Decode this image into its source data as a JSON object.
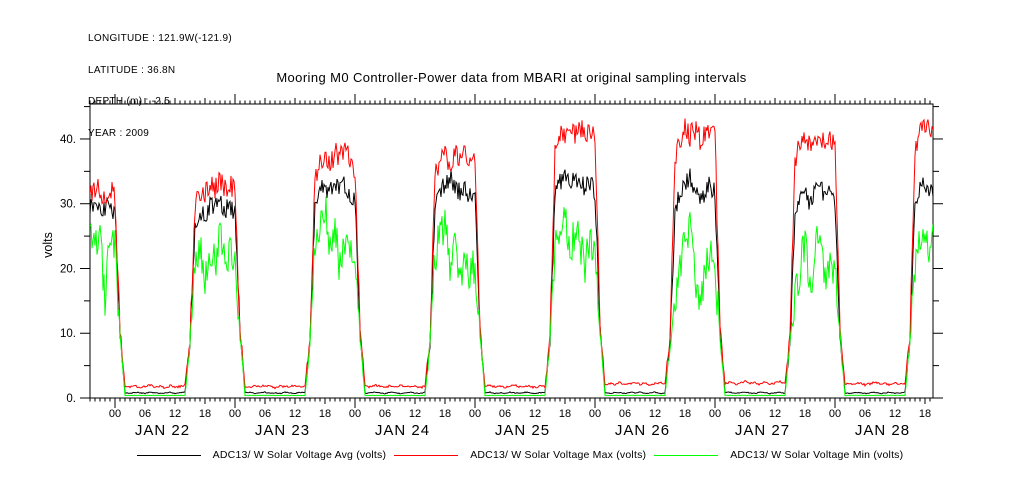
{
  "header": {
    "longitude": "LONGITUDE : 121.9W(-121.9)",
    "latitude": "LATITUDE : 36.8N",
    "depth": "DEPTH (m) : -2.5",
    "year": "YEAR : 2009"
  },
  "title": "Mooring M0 Controller-Power data from MBARI at original sampling intervals",
  "chart_data": {
    "type": "line",
    "title": "Mooring M0 Controller-Power data from MBARI at original sampling intervals",
    "ylabel": "volts",
    "ylim": [
      0,
      45.4
    ],
    "yticks_major": [
      0,
      10,
      20,
      30,
      40
    ],
    "ytick_labels": [
      "0.",
      "10.",
      "20.",
      "30.",
      "40."
    ],
    "yticks_minor": [
      5,
      15,
      25,
      35,
      45
    ],
    "grid": false,
    "legend_position": "bottom",
    "x_axis": {
      "unit": "hour of day",
      "start_hour": -5,
      "step_hours": 1,
      "count": 170,
      "xlim": [
        -5,
        163.6
      ],
      "hour_label_cycle": [
        "00",
        "06",
        "12",
        "18"
      ],
      "hour_label_step": 6,
      "hour_label_first": 0,
      "hour_label_last": 162,
      "day_labels": [
        "JAN 22",
        "JAN 23",
        "JAN 24",
        "JAN 25",
        "JAN 26",
        "JAN 27",
        "JAN 28"
      ],
      "day_boundary_hours": [
        0,
        24,
        48,
        72,
        96,
        120,
        144
      ]
    },
    "series": [
      {
        "key": "avg",
        "name": "ADC13/ W Solar Voltage Avg (volts)",
        "color": "#000000",
        "values": [
          29.5,
          30,
          29.5,
          29,
          30,
          28.5,
          10,
          0.8,
          0.7,
          0.9,
          0.8,
          0.7,
          0.9,
          0.8,
          0.7,
          0.8,
          0.9,
          0.7,
          0.8,
          0.9,
          8.5,
          27,
          28.5,
          28,
          29.5,
          30,
          30.5,
          29,
          29.5,
          28.5,
          10.5,
          0.8,
          0.9,
          0.7,
          0.8,
          0.9,
          0.7,
          0.8,
          0.7,
          0.9,
          0.8,
          0.7,
          0.9,
          0.8,
          9,
          30,
          32,
          33,
          31.5,
          33.5,
          32,
          33,
          31,
          30.5,
          10,
          0.7,
          0.8,
          0.9,
          0.8,
          0.7,
          0.9,
          0.8,
          0.7,
          0.8,
          0.9,
          0.8,
          0.7,
          0.9,
          8.5,
          30,
          32,
          33,
          34,
          33,
          31.5,
          32.5,
          31,
          31.5,
          10.5,
          0.8,
          0.9,
          0.7,
          0.8,
          0.7,
          0.9,
          0.8,
          0.7,
          0.9,
          0.8,
          0.7,
          0.8,
          0.9,
          9,
          31,
          33.5,
          34.5,
          33,
          34,
          33.5,
          32.5,
          33.5,
          32,
          10.5,
          0.8,
          0.7,
          0.9,
          0.8,
          0.7,
          0.9,
          0.8,
          0.9,
          0.7,
          0.8,
          0.9,
          0.7,
          0.8,
          8.5,
          29,
          31.5,
          33,
          34,
          32.5,
          30.5,
          31.5,
          33,
          31.5,
          10,
          0.8,
          0.9,
          0.7,
          0.8,
          0.9,
          0.8,
          0.7,
          0.9,
          0.8,
          0.7,
          0.8,
          0.9,
          0.7,
          9,
          28.5,
          31,
          32.5,
          30,
          32,
          33,
          30.5,
          31.5,
          30,
          10,
          0.8,
          0.7,
          0.9,
          0.8,
          0.7,
          0.8,
          0.9,
          0.7,
          0.8,
          0.9,
          0.7,
          0.8,
          0.9,
          9,
          30,
          32,
          33,
          31.5,
          32.5
        ]
      },
      {
        "key": "max",
        "name": "ADC13/ W Solar Voltage Max (volts)",
        "color": "#ff0000",
        "values": [
          31.5,
          32.5,
          32,
          31,
          32.5,
          31,
          10.5,
          1.9,
          1.7,
          1.9,
          1.6,
          1.8,
          2,
          1.7,
          1.8,
          1.6,
          1.9,
          1.7,
          1.8,
          2,
          9,
          30,
          32,
          31.5,
          33,
          32.5,
          33.5,
          32.5,
          33,
          32,
          11,
          1.8,
          1.6,
          1.9,
          1.7,
          2,
          1.8,
          1.6,
          1.9,
          1.7,
          1.8,
          2,
          1.7,
          1.9,
          9.5,
          34,
          36.5,
          37.5,
          36,
          38,
          37,
          38.5,
          36.5,
          35.5,
          11,
          1.9,
          1.7,
          2,
          1.8,
          1.6,
          1.9,
          1.7,
          2,
          1.8,
          1.7,
          1.9,
          1.6,
          1.8,
          9,
          34.5,
          36.5,
          37.5,
          36,
          38.5,
          37,
          38,
          36.5,
          37.5,
          11,
          1.8,
          2,
          1.7,
          1.9,
          1.6,
          1.8,
          2,
          1.7,
          1.9,
          1.8,
          1.6,
          1.9,
          1.7,
          9.5,
          38,
          41,
          40,
          41.5,
          40.5,
          42,
          40.5,
          41.5,
          40,
          11.5,
          2,
          2.3,
          2.1,
          2.4,
          2,
          2.2,
          2.5,
          2.1,
          2.3,
          2,
          2.2,
          2.4,
          2.1,
          9,
          37,
          40,
          41.5,
          40.5,
          41.5,
          40,
          41,
          42,
          40.5,
          11,
          2.2,
          2.5,
          2.1,
          2.3,
          2.6,
          2.2,
          2.4,
          2.1,
          2.5,
          2.2,
          2.3,
          2.6,
          2.2,
          9.5,
          36.5,
          39.5,
          40.5,
          39,
          41,
          40,
          39.5,
          40.5,
          39,
          11,
          2,
          2.3,
          2.1,
          2.4,
          2,
          2.2,
          2.5,
          2.1,
          2.3,
          2,
          2.4,
          2.1,
          2.2,
          9.5,
          38.5,
          41.5,
          42,
          41,
          42
        ]
      },
      {
        "key": "min",
        "name": "ADC13/ W Solar Voltage Min (volts)",
        "color": "#00ff00",
        "values": [
          27,
          23,
          26,
          15,
          25,
          24,
          9.5,
          0.4,
          0.4,
          0.4,
          0.4,
          0.4,
          0.4,
          0.4,
          0.4,
          0.4,
          0.4,
          0.4,
          0.4,
          0.4,
          8,
          22,
          24,
          19,
          23,
          21,
          25,
          20,
          23,
          22,
          9.5,
          0.4,
          0.4,
          0.4,
          0.4,
          0.4,
          0.4,
          0.4,
          0.4,
          0.4,
          0.4,
          0.4,
          0.4,
          0.4,
          8.5,
          24,
          27,
          30,
          22,
          26,
          20,
          24,
          21,
          23,
          9.5,
          0.4,
          0.4,
          0.4,
          0.4,
          0.4,
          0.4,
          0.4,
          0.4,
          0.4,
          0.4,
          0.4,
          0.4,
          0.4,
          8,
          22,
          25,
          27,
          21,
          24,
          18,
          22,
          19,
          21,
          10,
          0.4,
          0.4,
          0.4,
          0.4,
          0.4,
          0.4,
          0.4,
          0.4,
          0.4,
          0.4,
          0.4,
          0.4,
          0.4,
          8.5,
          23,
          26,
          29,
          22,
          26,
          24,
          20,
          25,
          22,
          10,
          0.4,
          0.4,
          0.4,
          0.4,
          0.4,
          0.4,
          0.4,
          0.4,
          0.4,
          0.4,
          0.4,
          0.4,
          0.4,
          8,
          15,
          20,
          24,
          27,
          18,
          14,
          19,
          23,
          20,
          9.5,
          0.4,
          0.4,
          0.4,
          0.4,
          0.4,
          0.4,
          0.4,
          0.4,
          0.4,
          0.4,
          0.4,
          0.4,
          0.4,
          8.5,
          16,
          20,
          24,
          17,
          22,
          26,
          18,
          21,
          19,
          9.5,
          0.4,
          0.4,
          0.4,
          0.4,
          0.4,
          0.4,
          0.4,
          0.4,
          0.4,
          0.4,
          0.4,
          0.4,
          0.4,
          8.5,
          20,
          24,
          27,
          22,
          25
        ]
      }
    ],
    "render_hints": {
      "seed": 20090122,
      "subsamples_per_hour": 5,
      "day_amplitude": [
        1.5,
        1.7,
        3.0
      ],
      "edge_amplitude": 0.8,
      "night_amplitude": [
        0.07,
        0.16,
        0.03
      ]
    }
  }
}
